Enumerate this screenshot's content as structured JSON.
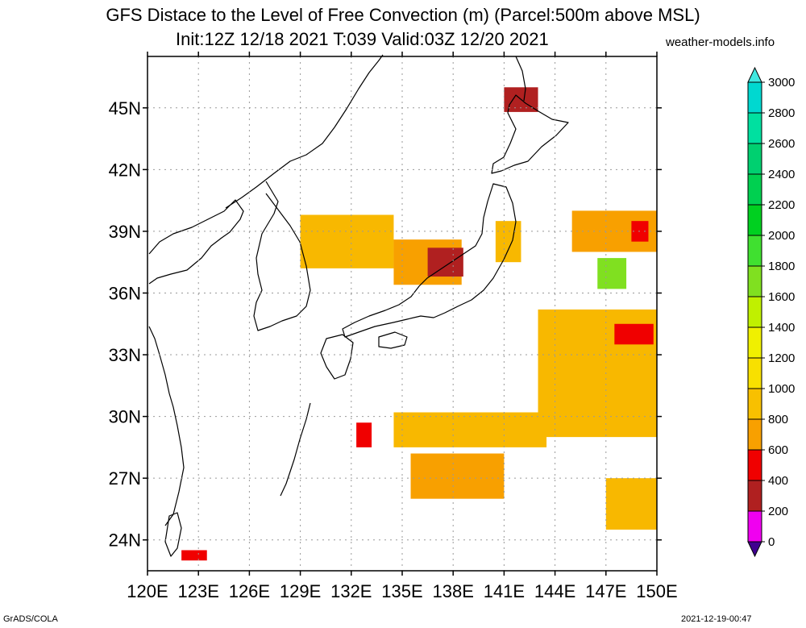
{
  "title": {
    "line1": "GFS Distace to the Level of Free Convection (m) (Parcel:500m above MSL)",
    "line2": "Init:12Z 12/18 2021 T:039 Valid:03Z 12/20 2021"
  },
  "site": "weather-models.info",
  "footer": {
    "left": "GrADS/COLA",
    "right": "2021-12-19-00:47"
  },
  "axes": {
    "lon_labels": [
      "120E",
      "123E",
      "126E",
      "129E",
      "132E",
      "135E",
      "138E",
      "141E",
      "144E",
      "147E",
      "150E"
    ],
    "lat_labels": [
      "45N",
      "42N",
      "39N",
      "36N",
      "33N",
      "30N",
      "27N",
      "24N"
    ],
    "lon_range": [
      120,
      150
    ],
    "lat_range": [
      22.5,
      47.5
    ],
    "grid": true
  },
  "colorbar": {
    "labels": [
      "3000",
      "2800",
      "2600",
      "2400",
      "2200",
      "2000",
      "1800",
      "1600",
      "1400",
      "1200",
      "1000",
      "800",
      "600",
      "400",
      "200",
      "0"
    ],
    "colors": [
      "#00d8d0",
      "#00e0a0",
      "#00d070",
      "#00d050",
      "#00d020",
      "#40e030",
      "#80e020",
      "#c0f000",
      "#f0f000",
      "#f8e000",
      "#f8c000",
      "#f8a000",
      "#f00000",
      "#b02020",
      "#f000f0",
      "#400090"
    ],
    "top_arrow_color": "#40e8e0",
    "bottom_arrow_color": "#400090"
  },
  "chart_data": {
    "type": "heatmap",
    "units": "m",
    "regions": [
      {
        "level": 1000,
        "color": "#f8b800",
        "lon": [
          129,
          134.5
        ],
        "lat": [
          37.2,
          39.8
        ]
      },
      {
        "level": 800,
        "color": "#f8a000",
        "lon": [
          134.5,
          138.5
        ],
        "lat": [
          36.4,
          38.6
        ]
      },
      {
        "level": 400,
        "color": "#b02020",
        "lon": [
          136.5,
          138.6
        ],
        "lat": [
          36.8,
          38.2
        ]
      },
      {
        "level": 1000,
        "color": "#f8b800",
        "lon": [
          140.5,
          142
        ],
        "lat": [
          37.5,
          39.5
        ]
      },
      {
        "level": 800,
        "color": "#f8a000",
        "lon": [
          145,
          150
        ],
        "lat": [
          38,
          40
        ]
      },
      {
        "level": 600,
        "color": "#f00000",
        "lon": [
          148.5,
          149.5
        ],
        "lat": [
          38.5,
          39.5
        ]
      },
      {
        "level": 1800,
        "color": "#80e020",
        "lon": [
          146.5,
          148.2
        ],
        "lat": [
          36.2,
          37.7
        ]
      },
      {
        "level": 1000,
        "color": "#f8b800",
        "lon": [
          143,
          150
        ],
        "lat": [
          29,
          35.2
        ]
      },
      {
        "level": 600,
        "color": "#f00000",
        "lon": [
          147.5,
          149.8
        ],
        "lat": [
          33.5,
          34.5
        ]
      },
      {
        "level": 1000,
        "color": "#f8b800",
        "lon": [
          134.5,
          143.5
        ],
        "lat": [
          28.5,
          30.2
        ]
      },
      {
        "level": 800,
        "color": "#f8a000",
        "lon": [
          135.5,
          141
        ],
        "lat": [
          26,
          28.2
        ]
      },
      {
        "level": 600,
        "color": "#f00000",
        "lon": [
          132.3,
          133.2
        ],
        "lat": [
          28.5,
          29.7
        ]
      },
      {
        "level": 1000,
        "color": "#f8b800",
        "lon": [
          147,
          150
        ],
        "lat": [
          24.5,
          27
        ]
      },
      {
        "level": 400,
        "color": "#b02020",
        "lon": [
          141,
          143
        ],
        "lat": [
          44.8,
          46
        ]
      },
      {
        "level": 600,
        "color": "#f00000",
        "lon": [
          122,
          123.5
        ],
        "lat": [
          23,
          23.5
        ]
      }
    ]
  }
}
